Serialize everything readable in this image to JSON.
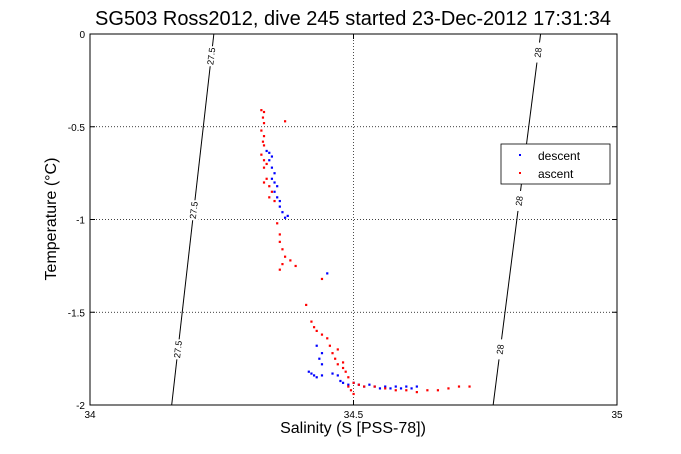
{
  "chart_data": {
    "type": "scatter",
    "title": "SG503 Ross2012, dive 245 started 23-Dec-2012 17:31:34",
    "xlabel": "Salinity (S [PSS-78])",
    "ylabel": "Temperature (°C)",
    "xlim": [
      34,
      35
    ],
    "ylim": [
      -2,
      0
    ],
    "xticks": [
      34,
      34.5,
      35
    ],
    "xtick_labels": [
      "34",
      "34.5",
      "35"
    ],
    "yticks": [
      0,
      -0.5,
      -1,
      -1.5,
      -2
    ],
    "ytick_labels": [
      "0",
      "-0.5",
      "-1",
      "-1.5",
      "-2"
    ],
    "grid": true,
    "legend_position": "top-right",
    "isopycnals": [
      {
        "label": "27.5",
        "points": [
          [
            34.155,
            -2
          ],
          [
            34.235,
            0
          ]
        ],
        "label_y": [
          -0.12,
          -0.95,
          -1.7
        ]
      },
      {
        "label": "28",
        "points": [
          [
            34.765,
            -2
          ],
          [
            34.855,
            0
          ]
        ],
        "label_y": [
          -0.1,
          -0.9,
          -1.7
        ]
      }
    ],
    "series": [
      {
        "name": "descent",
        "color": "#0000ff",
        "points": [
          [
            34.335,
            -0.63
          ],
          [
            34.34,
            -0.64
          ],
          [
            34.345,
            -0.66
          ],
          [
            34.34,
            -0.68
          ],
          [
            34.345,
            -0.72
          ],
          [
            34.35,
            -0.75
          ],
          [
            34.345,
            -0.78
          ],
          [
            34.35,
            -0.8
          ],
          [
            34.355,
            -0.82
          ],
          [
            34.35,
            -0.85
          ],
          [
            34.355,
            -0.88
          ],
          [
            34.36,
            -0.9
          ],
          [
            34.36,
            -0.93
          ],
          [
            34.365,
            -0.96
          ],
          [
            34.37,
            -0.99
          ],
          [
            34.375,
            -0.98
          ],
          [
            34.45,
            -1.29
          ],
          [
            34.43,
            -1.68
          ],
          [
            34.44,
            -1.72
          ],
          [
            34.435,
            -1.75
          ],
          [
            34.44,
            -1.78
          ],
          [
            34.415,
            -1.82
          ],
          [
            34.42,
            -1.83
          ],
          [
            34.425,
            -1.84
          ],
          [
            34.43,
            -1.85
          ],
          [
            34.44,
            -1.84
          ],
          [
            34.46,
            -1.83
          ],
          [
            34.47,
            -1.84
          ],
          [
            34.475,
            -1.87
          ],
          [
            34.48,
            -1.88
          ],
          [
            34.49,
            -1.89
          ],
          [
            34.5,
            -1.88
          ],
          [
            34.51,
            -1.89
          ],
          [
            34.52,
            -1.9
          ],
          [
            34.53,
            -1.89
          ],
          [
            34.54,
            -1.9
          ],
          [
            34.55,
            -1.91
          ],
          [
            34.56,
            -1.9
          ],
          [
            34.57,
            -1.91
          ],
          [
            34.58,
            -1.9
          ],
          [
            34.59,
            -1.91
          ],
          [
            34.6,
            -1.9
          ],
          [
            34.61,
            -1.91
          ],
          [
            34.62,
            -1.9
          ]
        ]
      },
      {
        "name": "ascent",
        "color": "#ff0000",
        "points": [
          [
            34.325,
            -0.41
          ],
          [
            34.33,
            -0.42
          ],
          [
            34.328,
            -0.45
          ],
          [
            34.33,
            -0.48
          ],
          [
            34.325,
            -0.52
          ],
          [
            34.33,
            -0.55
          ],
          [
            34.328,
            -0.58
          ],
          [
            34.33,
            -0.6
          ],
          [
            34.325,
            -0.65
          ],
          [
            34.33,
            -0.68
          ],
          [
            34.335,
            -0.7
          ],
          [
            34.33,
            -0.72
          ],
          [
            34.335,
            -0.78
          ],
          [
            34.33,
            -0.8
          ],
          [
            34.34,
            -0.82
          ],
          [
            34.345,
            -0.85
          ],
          [
            34.34,
            -0.88
          ],
          [
            34.35,
            -0.9
          ],
          [
            34.37,
            -0.47
          ],
          [
            34.355,
            -1.02
          ],
          [
            34.36,
            -1.08
          ],
          [
            34.36,
            -1.12
          ],
          [
            34.365,
            -1.16
          ],
          [
            34.37,
            -1.2
          ],
          [
            34.365,
            -1.24
          ],
          [
            34.38,
            -1.22
          ],
          [
            34.39,
            -1.25
          ],
          [
            34.36,
            -1.27
          ],
          [
            34.44,
            -1.32
          ],
          [
            34.41,
            -1.46
          ],
          [
            34.42,
            -1.55
          ],
          [
            34.425,
            -1.58
          ],
          [
            34.43,
            -1.6
          ],
          [
            34.44,
            -1.62
          ],
          [
            34.45,
            -1.64
          ],
          [
            34.455,
            -1.68
          ],
          [
            34.46,
            -1.72
          ],
          [
            34.465,
            -1.75
          ],
          [
            34.47,
            -1.78
          ],
          [
            34.48,
            -1.8
          ],
          [
            34.485,
            -1.82
          ],
          [
            34.49,
            -1.85
          ],
          [
            34.5,
            -1.88
          ],
          [
            34.51,
            -1.89
          ],
          [
            34.52,
            -1.9
          ],
          [
            34.54,
            -1.9
          ],
          [
            34.56,
            -1.91
          ],
          [
            34.58,
            -1.92
          ],
          [
            34.6,
            -1.92
          ],
          [
            34.62,
            -1.93
          ],
          [
            34.64,
            -1.92
          ],
          [
            34.66,
            -1.92
          ],
          [
            34.68,
            -1.91
          ],
          [
            34.7,
            -1.9
          ],
          [
            34.72,
            -1.9
          ],
          [
            34.49,
            -1.9
          ],
          [
            34.495,
            -1.92
          ],
          [
            34.5,
            -1.94
          ],
          [
            34.48,
            -1.77
          ],
          [
            34.47,
            -1.7
          ]
        ]
      }
    ]
  }
}
